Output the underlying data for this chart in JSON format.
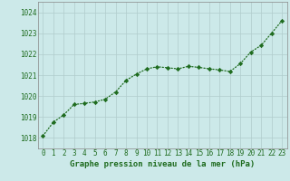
{
  "x": [
    0,
    1,
    2,
    3,
    4,
    5,
    6,
    7,
    8,
    9,
    10,
    11,
    12,
    13,
    14,
    15,
    16,
    17,
    18,
    19,
    20,
    21,
    22,
    23
  ],
  "y": [
    1018.1,
    1018.75,
    1019.1,
    1019.6,
    1019.65,
    1019.72,
    1019.85,
    1020.2,
    1020.75,
    1021.05,
    1021.3,
    1021.4,
    1021.35,
    1021.3,
    1021.42,
    1021.37,
    1021.3,
    1021.25,
    1021.17,
    1021.55,
    1022.1,
    1022.42,
    1023.0,
    1023.6
  ],
  "ylim": [
    1017.5,
    1024.5
  ],
  "yticks": [
    1018,
    1019,
    1020,
    1021,
    1022,
    1023,
    1024
  ],
  "xlim": [
    -0.5,
    23.5
  ],
  "xticks": [
    0,
    1,
    2,
    3,
    4,
    5,
    6,
    7,
    8,
    9,
    10,
    11,
    12,
    13,
    14,
    15,
    16,
    17,
    18,
    19,
    20,
    21,
    22,
    23
  ],
  "line_color": "#1e6b1e",
  "marker": "D",
  "marker_size": 2.2,
  "line_width": 0.9,
  "bg_color": "#cce9e9",
  "grid_color": "#b0cccc",
  "xlabel": "Graphe pression niveau de la mer (hPa)",
  "xlabel_color": "#1e6b1e",
  "xlabel_fontsize": 6.5,
  "tick_fontsize": 5.5,
  "tick_color": "#1e6b1e",
  "axis_color": "#888888"
}
